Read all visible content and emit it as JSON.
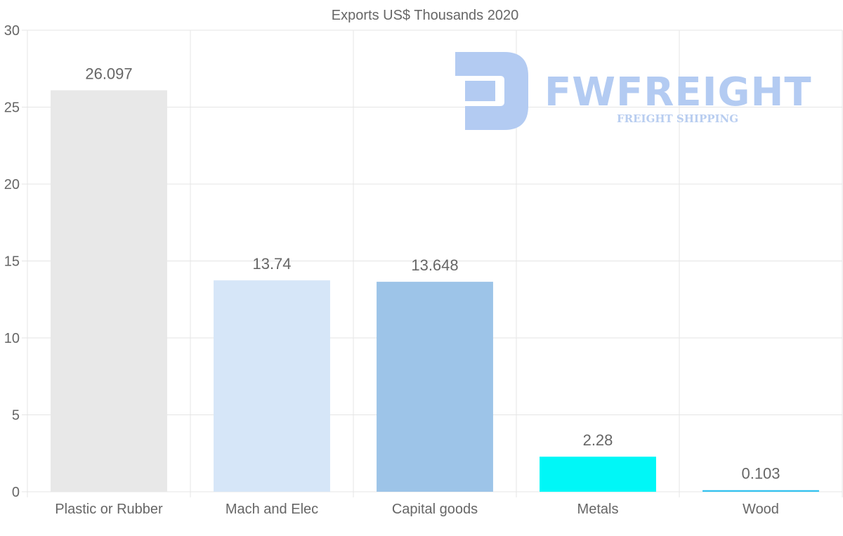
{
  "chart_data": {
    "type": "bar",
    "title": "Exports US$ Thousands 2020",
    "categories": [
      "Plastic or Rubber",
      "Mach and Elec",
      "Capital goods",
      "Metals",
      "Wood"
    ],
    "values": [
      26.097,
      13.74,
      13.648,
      2.28,
      0.103
    ],
    "value_labels": [
      "26.097",
      "13.74",
      "13.648",
      "2.28",
      "0.103"
    ],
    "colors": [
      "#e8e8e8",
      "#d6e6f8",
      "#9dc4e8",
      "#00f7f7",
      "#33c2f0"
    ],
    "ylim": [
      0,
      30
    ],
    "yticks": [
      "0",
      "5",
      "10",
      "15",
      "20",
      "25",
      "30"
    ],
    "xlabel": "",
    "ylabel": "",
    "grid": true,
    "legend": "none"
  },
  "watermark": {
    "name": "FWFREIGHT",
    "tagline": "FREIGHT SHIPPING",
    "color": "#b3cbf2"
  }
}
